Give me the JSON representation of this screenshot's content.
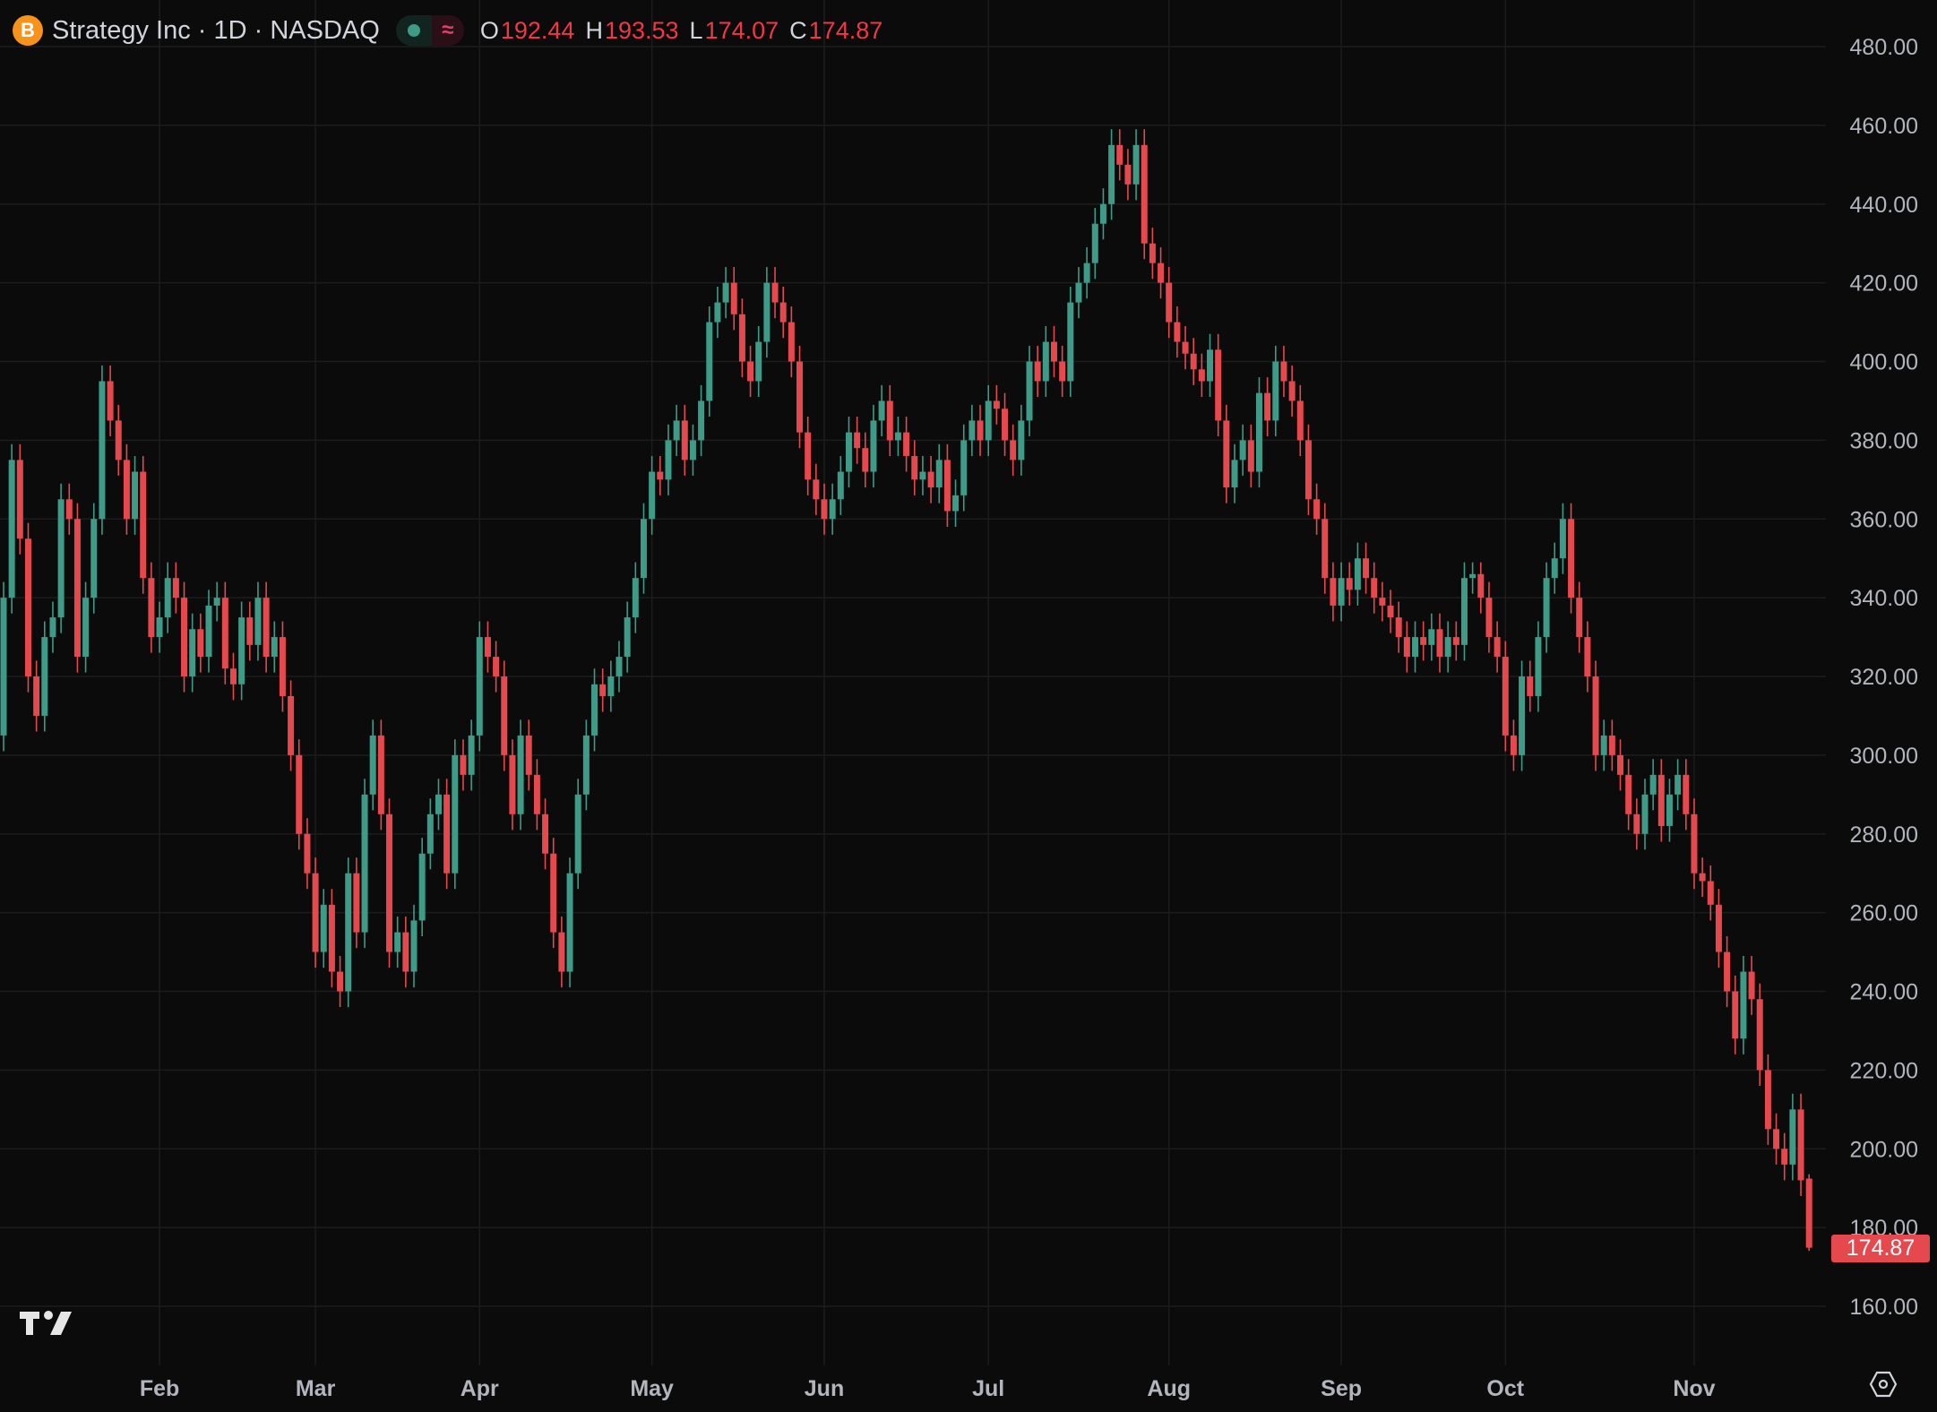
{
  "header": {
    "symbol_title": "Strategy Inc · 1D · NASDAQ",
    "logo_letter": "B",
    "ohlc": [
      {
        "key": "O",
        "value": "192.44"
      },
      {
        "key": "H",
        "value": "193.53"
      },
      {
        "key": "L",
        "value": "174.07"
      },
      {
        "key": "C",
        "value": "174.87"
      }
    ]
  },
  "last_price_label": "174.87",
  "colors": {
    "up": "#3d9b87",
    "down": "#e5484d",
    "background": "#0b0b0b",
    "grid": "#1c1c1c",
    "axis_text": "#b2b5be"
  },
  "icons": {
    "logo": "tradingview-logo-icon",
    "settings": "settings-hexagon-icon",
    "indicator_dot": "status-dot-icon",
    "indicator_wave": "wave-icon"
  },
  "chart_data": {
    "type": "candlestick",
    "title": "",
    "xlabel": "",
    "ylabel": "",
    "ylim": [
      155,
      485
    ],
    "grid": true,
    "y_ticks": [
      "160.00",
      "180.00",
      "200.00",
      "220.00",
      "240.00",
      "260.00",
      "280.00",
      "300.00",
      "320.00",
      "340.00",
      "360.00",
      "380.00",
      "400.00",
      "420.00",
      "440.00",
      "460.00",
      "480.00"
    ],
    "x_ticks": [
      {
        "label": "Feb",
        "index": 19
      },
      {
        "label": "Mar",
        "index": 38
      },
      {
        "label": "Apr",
        "index": 58
      },
      {
        "label": "May",
        "index": 79
      },
      {
        "label": "Jun",
        "index": 100
      },
      {
        "label": "Jul",
        "index": 120
      },
      {
        "label": "Aug",
        "index": 142
      },
      {
        "label": "Sep",
        "index": 163
      },
      {
        "label": "Oct",
        "index": 183
      },
      {
        "label": "Nov",
        "index": 206
      }
    ],
    "ohlc_fields": [
      "open",
      "high",
      "low",
      "close"
    ],
    "candles": [
      [
        305,
        344,
        301,
        340
      ],
      [
        340,
        379,
        336,
        375
      ],
      [
        375,
        379,
        351,
        355
      ],
      [
        355,
        359,
        316,
        320
      ],
      [
        320,
        324,
        306,
        310
      ],
      [
        310,
        334,
        306,
        330
      ],
      [
        330,
        339,
        326,
        335
      ],
      [
        335,
        369,
        331,
        365
      ],
      [
        365,
        369,
        356,
        360
      ],
      [
        360,
        364,
        321,
        325
      ],
      [
        325,
        344,
        321,
        340
      ],
      [
        340,
        364,
        336,
        360
      ],
      [
        360,
        399,
        356,
        395
      ],
      [
        395,
        399,
        381,
        385
      ],
      [
        385,
        389,
        371,
        375
      ],
      [
        375,
        379,
        356,
        360
      ],
      [
        360,
        376,
        356,
        372
      ],
      [
        372,
        376,
        341,
        345
      ],
      [
        345,
        349,
        326,
        330
      ],
      [
        330,
        339,
        326,
        335
      ],
      [
        335,
        349,
        331,
        345
      ],
      [
        345,
        349,
        336,
        340
      ],
      [
        340,
        344,
        316,
        320
      ],
      [
        320,
        336,
        316,
        332
      ],
      [
        332,
        336,
        321,
        325
      ],
      [
        325,
        342,
        321,
        338
      ],
      [
        338,
        344,
        334,
        340
      ],
      [
        340,
        344,
        318,
        322
      ],
      [
        322,
        326,
        314,
        318
      ],
      [
        318,
        339,
        314,
        335
      ],
      [
        335,
        339,
        324,
        328
      ],
      [
        328,
        344,
        324,
        340
      ],
      [
        340,
        344,
        321,
        325
      ],
      [
        325,
        334,
        321,
        330
      ],
      [
        330,
        334,
        311,
        315
      ],
      [
        315,
        319,
        296,
        300
      ],
      [
        300,
        304,
        276,
        280
      ],
      [
        280,
        284,
        266,
        270
      ],
      [
        270,
        274,
        246,
        250
      ],
      [
        250,
        266,
        246,
        262
      ],
      [
        262,
        266,
        241,
        245
      ],
      [
        245,
        249,
        236,
        240
      ],
      [
        240,
        274,
        236,
        270
      ],
      [
        270,
        274,
        251,
        255
      ],
      [
        255,
        294,
        251,
        290
      ],
      [
        290,
        309,
        286,
        305
      ],
      [
        305,
        309,
        281,
        285
      ],
      [
        285,
        289,
        246,
        250
      ],
      [
        250,
        259,
        246,
        255
      ],
      [
        255,
        259,
        241,
        245
      ],
      [
        245,
        262,
        241,
        258
      ],
      [
        258,
        279,
        254,
        275
      ],
      [
        275,
        289,
        271,
        285
      ],
      [
        285,
        294,
        281,
        290
      ],
      [
        290,
        294,
        266,
        270
      ],
      [
        270,
        304,
        266,
        300
      ],
      [
        300,
        304,
        291,
        295
      ],
      [
        295,
        309,
        291,
        305
      ],
      [
        305,
        334,
        301,
        330
      ],
      [
        330,
        334,
        321,
        325
      ],
      [
        325,
        329,
        316,
        320
      ],
      [
        320,
        324,
        296,
        300
      ],
      [
        300,
        304,
        281,
        285
      ],
      [
        285,
        309,
        281,
        305
      ],
      [
        305,
        309,
        291,
        295
      ],
      [
        295,
        299,
        281,
        285
      ],
      [
        285,
        289,
        271,
        275
      ],
      [
        275,
        279,
        251,
        255
      ],
      [
        255,
        259,
        241,
        245
      ],
      [
        245,
        274,
        241,
        270
      ],
      [
        270,
        294,
        266,
        290
      ],
      [
        290,
        309,
        286,
        305
      ],
      [
        305,
        322,
        301,
        318
      ],
      [
        318,
        322,
        311,
        315
      ],
      [
        315,
        324,
        311,
        320
      ],
      [
        320,
        329,
        316,
        325
      ],
      [
        325,
        339,
        321,
        335
      ],
      [
        335,
        349,
        331,
        345
      ],
      [
        345,
        364,
        341,
        360
      ],
      [
        360,
        376,
        356,
        372
      ],
      [
        372,
        376,
        366,
        370
      ],
      [
        370,
        384,
        366,
        380
      ],
      [
        380,
        389,
        376,
        385
      ],
      [
        385,
        389,
        371,
        375
      ],
      [
        375,
        384,
        371,
        380
      ],
      [
        380,
        394,
        376,
        390
      ],
      [
        390,
        414,
        386,
        410
      ],
      [
        410,
        419,
        406,
        415
      ],
      [
        415,
        424,
        411,
        420
      ],
      [
        420,
        424,
        408,
        412
      ],
      [
        412,
        416,
        396,
        400
      ],
      [
        400,
        404,
        391,
        395
      ],
      [
        395,
        409,
        391,
        405
      ],
      [
        405,
        424,
        401,
        420
      ],
      [
        420,
        424,
        411,
        415
      ],
      [
        415,
        419,
        406,
        410
      ],
      [
        410,
        414,
        396,
        400
      ],
      [
        400,
        404,
        378,
        382
      ],
      [
        382,
        386,
        366,
        370
      ],
      [
        370,
        374,
        361,
        365
      ],
      [
        365,
        369,
        356,
        360
      ],
      [
        360,
        369,
        356,
        365
      ],
      [
        365,
        376,
        361,
        372
      ],
      [
        372,
        386,
        368,
        382
      ],
      [
        382,
        386,
        374,
        378
      ],
      [
        378,
        382,
        368,
        372
      ],
      [
        372,
        389,
        368,
        385
      ],
      [
        385,
        394,
        381,
        390
      ],
      [
        390,
        394,
        376,
        380
      ],
      [
        380,
        386,
        376,
        382
      ],
      [
        382,
        386,
        372,
        376
      ],
      [
        376,
        380,
        366,
        370
      ],
      [
        370,
        376,
        366,
        372
      ],
      [
        372,
        376,
        364,
        368
      ],
      [
        368,
        379,
        364,
        375
      ],
      [
        375,
        379,
        358,
        362
      ],
      [
        362,
        370,
        358,
        366
      ],
      [
        366,
        384,
        362,
        380
      ],
      [
        380,
        389,
        376,
        385
      ],
      [
        385,
        389,
        376,
        380
      ],
      [
        380,
        394,
        376,
        390
      ],
      [
        390,
        394,
        384,
        388
      ],
      [
        388,
        392,
        376,
        380
      ],
      [
        380,
        384,
        371,
        375
      ],
      [
        375,
        389,
        371,
        385
      ],
      [
        385,
        404,
        381,
        400
      ],
      [
        400,
        404,
        391,
        395
      ],
      [
        395,
        409,
        391,
        405
      ],
      [
        405,
        409,
        396,
        400
      ],
      [
        400,
        404,
        391,
        395
      ],
      [
        395,
        419,
        391,
        415
      ],
      [
        415,
        424,
        411,
        420
      ],
      [
        420,
        429,
        416,
        425
      ],
      [
        425,
        439,
        421,
        435
      ],
      [
        435,
        444,
        431,
        440
      ],
      [
        440,
        459,
        436,
        455
      ],
      [
        455,
        459,
        446,
        450
      ],
      [
        450,
        454,
        441,
        445
      ],
      [
        445,
        459,
        441,
        455
      ],
      [
        455,
        459,
        426,
        430
      ],
      [
        430,
        434,
        421,
        425
      ],
      [
        425,
        429,
        416,
        420
      ],
      [
        420,
        424,
        406,
        410
      ],
      [
        410,
        414,
        401,
        405
      ],
      [
        405,
        409,
        398,
        402
      ],
      [
        402,
        406,
        394,
        398
      ],
      [
        398,
        402,
        391,
        395
      ],
      [
        395,
        407,
        391,
        403
      ],
      [
        403,
        407,
        381,
        385
      ],
      [
        385,
        389,
        364,
        368
      ],
      [
        368,
        379,
        364,
        375
      ],
      [
        375,
        384,
        371,
        380
      ],
      [
        380,
        384,
        368,
        372
      ],
      [
        372,
        396,
        368,
        392
      ],
      [
        392,
        396,
        381,
        385
      ],
      [
        385,
        404,
        381,
        400
      ],
      [
        400,
        404,
        391,
        395
      ],
      [
        395,
        399,
        386,
        390
      ],
      [
        390,
        394,
        376,
        380
      ],
      [
        380,
        384,
        361,
        365
      ],
      [
        365,
        369,
        356,
        360
      ],
      [
        360,
        364,
        341,
        345
      ],
      [
        345,
        349,
        334,
        338
      ],
      [
        338,
        349,
        334,
        345
      ],
      [
        345,
        349,
        338,
        342
      ],
      [
        342,
        354,
        338,
        350
      ],
      [
        350,
        354,
        341,
        345
      ],
      [
        345,
        349,
        336,
        340
      ],
      [
        340,
        344,
        334,
        338
      ],
      [
        338,
        342,
        331,
        335
      ],
      [
        335,
        339,
        326,
        330
      ],
      [
        330,
        334,
        321,
        325
      ],
      [
        325,
        334,
        321,
        330
      ],
      [
        330,
        334,
        324,
        328
      ],
      [
        328,
        336,
        324,
        332
      ],
      [
        332,
        336,
        321,
        325
      ],
      [
        325,
        334,
        321,
        330
      ],
      [
        330,
        334,
        324,
        328
      ],
      [
        328,
        349,
        324,
        345
      ],
      [
        345,
        349,
        341,
        346
      ],
      [
        346,
        349,
        336,
        340
      ],
      [
        340,
        344,
        326,
        330
      ],
      [
        330,
        334,
        321,
        325
      ],
      [
        325,
        329,
        301,
        305
      ],
      [
        305,
        309,
        296,
        300
      ],
      [
        300,
        324,
        296,
        320
      ],
      [
        320,
        324,
        311,
        315
      ],
      [
        315,
        334,
        311,
        330
      ],
      [
        330,
        349,
        326,
        345
      ],
      [
        345,
        354,
        341,
        350
      ],
      [
        350,
        364,
        346,
        360
      ],
      [
        360,
        364,
        336,
        340
      ],
      [
        340,
        344,
        326,
        330
      ],
      [
        330,
        334,
        316,
        320
      ],
      [
        320,
        324,
        296,
        300
      ],
      [
        300,
        309,
        296,
        305
      ],
      [
        305,
        309,
        296,
        300
      ],
      [
        300,
        304,
        291,
        295
      ],
      [
        295,
        299,
        281,
        285
      ],
      [
        285,
        289,
        276,
        280
      ],
      [
        280,
        294,
        276,
        290
      ],
      [
        290,
        299,
        286,
        295
      ],
      [
        295,
        299,
        278,
        282
      ],
      [
        282,
        294,
        278,
        290
      ],
      [
        290,
        299,
        286,
        295
      ],
      [
        295,
        299,
        281,
        285
      ],
      [
        285,
        289,
        266,
        270
      ],
      [
        270,
        274,
        264,
        268
      ],
      [
        268,
        272,
        258,
        262
      ],
      [
        262,
        266,
        246,
        250
      ],
      [
        250,
        254,
        236,
        240
      ],
      [
        240,
        244,
        224,
        228
      ],
      [
        228,
        249,
        224,
        245
      ],
      [
        245,
        249,
        234,
        238
      ],
      [
        238,
        242,
        216,
        220
      ],
      [
        220,
        224,
        201,
        205
      ],
      [
        205,
        209,
        196,
        200
      ],
      [
        200,
        204,
        192,
        196
      ],
      [
        196,
        214,
        192,
        210
      ],
      [
        210,
        214,
        188,
        192
      ],
      [
        192.44,
        193.53,
        174.07,
        174.87
      ]
    ]
  }
}
